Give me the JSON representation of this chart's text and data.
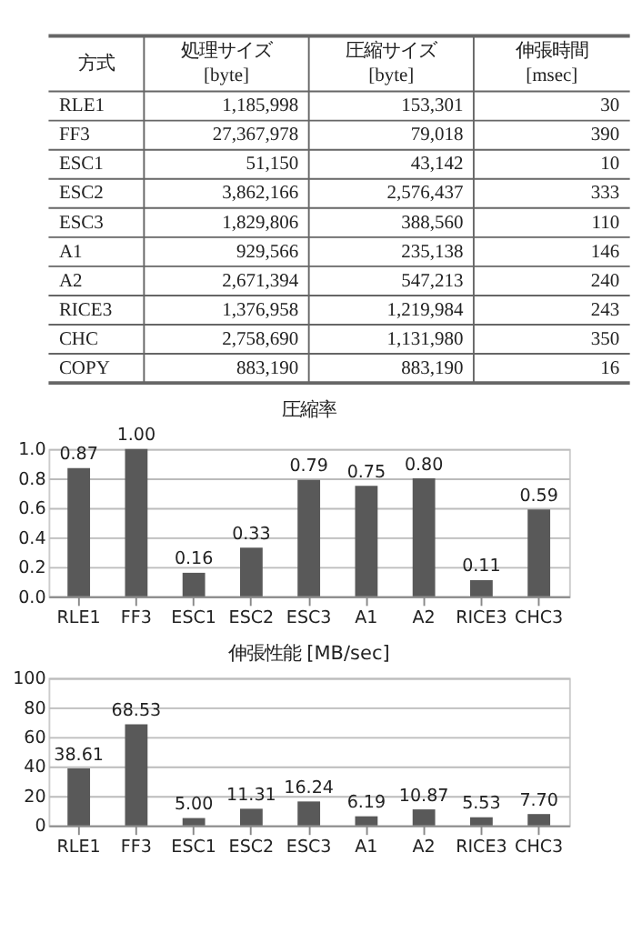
{
  "chart_data": [
    {
      "type": "other",
      "annotations": [
        "方式",
        "処理サイズ [byte]",
        "圧縮サイズ [byte]",
        "伸張時間 [msec]",
        "RLE1",
        "1,185,998",
        "153,301",
        "30",
        "FF3",
        "27,367,978",
        "79,018",
        "390",
        "ESC1",
        "51,150",
        "43,142",
        "10",
        "ESC2",
        "3,862,166",
        "2,576,437",
        "333",
        "ESC3",
        "1,829,806",
        "388,560",
        "110",
        "A1",
        "929,566",
        "235,138",
        "146",
        "A2",
        "2,671,394",
        "547,213",
        "240",
        "RICE3",
        "1,376,958",
        "1,219,984",
        "243",
        "CHC",
        "2,758,690",
        "1,131,980",
        "350",
        "COPY",
        "883,190",
        "883,190",
        "16"
      ]
    },
    {
      "type": "bar",
      "title": "圧縮率",
      "categories": [
        "RLE1",
        "FF3",
        "ESC1",
        "ESC2",
        "ESC3",
        "A1",
        "A2",
        "RICE3",
        "CHC3"
      ],
      "values": [
        0.87,
        1.0,
        0.16,
        0.33,
        0.79,
        0.75,
        0.8,
        0.11,
        0.59
      ],
      "value_labels": [
        "0.87",
        "1.00",
        "0.16",
        "0.33",
        "0.79",
        "0.75",
        "0.80",
        "0.11",
        "0.59"
      ],
      "color": "#595959",
      "ylim": [
        0,
        1
      ],
      "yticks": [
        {
          "value": 0,
          "label": "0.0"
        },
        {
          "value": 0.2,
          "label": "0.2"
        },
        {
          "value": 0.4,
          "label": "0.4"
        },
        {
          "value": 0.6,
          "label": "0.6"
        },
        {
          "value": 0.8,
          "label": "0.8"
        },
        {
          "value": 1,
          "label": "1.0"
        }
      ],
      "grid": "y"
    },
    {
      "type": "bar",
      "title": "伸張性能 [MB/sec]",
      "categories": [
        "RLE1",
        "FF3",
        "ESC1",
        "ESC2",
        "ESC3",
        "A1",
        "A2",
        "RICE3",
        "CHC3"
      ],
      "values": [
        38.61,
        68.53,
        5.0,
        11.31,
        16.24,
        6.19,
        10.87,
        5.53,
        7.7
      ],
      "value_labels": [
        "38.61",
        "68.53",
        "5.00",
        "11.31",
        "16.24",
        "6.19",
        "10.87",
        "5.53",
        "7.70"
      ],
      "color": "#595959",
      "ylim": [
        0,
        100
      ],
      "yticks": [
        0,
        20,
        40,
        60,
        80,
        100
      ],
      "grid": "y"
    }
  ]
}
